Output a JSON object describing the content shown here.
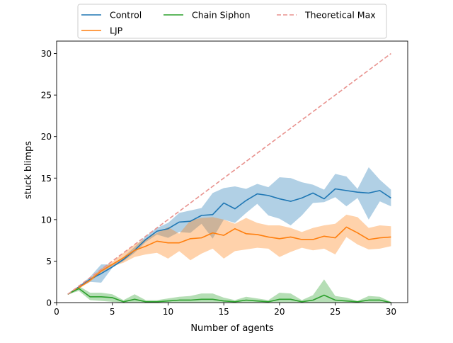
{
  "chart_data": {
    "type": "line",
    "title": "",
    "xlabel": "Number of agents",
    "ylabel": "stuck blimps",
    "xlim": [
      0,
      31.5
    ],
    "ylim": [
      0,
      31.5
    ],
    "xticks": [
      0,
      5,
      10,
      15,
      20,
      25,
      30
    ],
    "yticks": [
      0,
      5,
      10,
      15,
      20,
      25,
      30
    ],
    "grid": false,
    "legend_position": "top-center, outside plot, 3 columns",
    "x": [
      1,
      2,
      3,
      4,
      5,
      6,
      7,
      8,
      9,
      10,
      11,
      12,
      13,
      14,
      15,
      16,
      17,
      18,
      19,
      20,
      21,
      22,
      23,
      24,
      25,
      26,
      27,
      28,
      29,
      30
    ],
    "series": [
      {
        "name": "Control",
        "color": "#1f77b4",
        "style": "solid",
        "values": [
          1.0,
          1.9,
          2.8,
          3.5,
          4.3,
          5.2,
          6.3,
          7.6,
          8.6,
          8.9,
          9.7,
          9.8,
          10.5,
          10.6,
          12.0,
          11.3,
          12.3,
          13.1,
          12.9,
          12.5,
          12.2,
          12.6,
          13.2,
          12.5,
          13.7,
          13.5,
          13.3,
          13.2,
          13.5,
          12.6
        ],
        "band_lower": [
          1.0,
          1.8,
          2.5,
          2.4,
          4.2,
          5.0,
          6.0,
          7.3,
          8.2,
          7.8,
          8.5,
          8.4,
          9.5,
          7.7,
          10.0,
          9.6,
          10.8,
          11.9,
          10.5,
          10.1,
          9.3,
          10.5,
          12.0,
          12.1,
          12.7,
          11.6,
          12.6,
          10.0,
          12.2,
          11.6
        ],
        "band_upper": [
          1.0,
          2.0,
          3.1,
          4.6,
          4.6,
          5.5,
          6.7,
          8.0,
          9.0,
          9.6,
          10.8,
          11.1,
          11.4,
          13.2,
          13.8,
          14.0,
          13.7,
          14.3,
          13.9,
          15.1,
          15.0,
          14.5,
          14.2,
          13.6,
          15.5,
          15.2,
          13.7,
          16.3,
          14.8,
          13.6
        ]
      },
      {
        "name": "LJP",
        "color": "#ff7f0e",
        "style": "solid",
        "values": [
          1.0,
          1.8,
          2.7,
          3.8,
          4.6,
          5.4,
          6.3,
          6.8,
          7.4,
          7.2,
          7.2,
          7.7,
          7.8,
          8.4,
          8.1,
          8.9,
          8.3,
          8.2,
          7.9,
          7.7,
          7.9,
          7.6,
          7.6,
          8.0,
          7.8,
          9.1,
          8.4,
          7.6,
          7.8,
          7.9
        ],
        "band_lower": [
          1.0,
          1.7,
          2.5,
          3.6,
          4.4,
          4.8,
          5.5,
          5.8,
          6.0,
          5.3,
          6.2,
          5.1,
          5.9,
          6.5,
          5.3,
          6.2,
          6.4,
          6.6,
          6.5,
          5.5,
          6.1,
          6.6,
          6.3,
          6.5,
          5.8,
          7.9,
          7.0,
          6.4,
          6.5,
          6.8
        ],
        "band_upper": [
          1.0,
          1.9,
          2.9,
          4.1,
          4.9,
          6.0,
          7.0,
          7.7,
          8.4,
          9.1,
          8.3,
          9.9,
          10.2,
          10.3,
          10.0,
          9.5,
          10.2,
          9.6,
          9.3,
          9.3,
          9.0,
          8.5,
          9.0,
          9.3,
          9.5,
          10.6,
          10.3,
          9.0,
          9.3,
          9.2
        ]
      },
      {
        "name": "Chain Siphon",
        "color": "#2ca02c",
        "style": "solid",
        "values": [
          1.0,
          1.7,
          0.7,
          0.7,
          0.6,
          0.1,
          0.4,
          0.1,
          0.1,
          0.2,
          0.3,
          0.3,
          0.4,
          0.4,
          0.2,
          0.1,
          0.3,
          0.2,
          0.1,
          0.4,
          0.4,
          0.1,
          0.3,
          0.9,
          0.3,
          0.2,
          0.1,
          0.3,
          0.3,
          0.0
        ],
        "band_lower": [
          1.0,
          1.4,
          0.3,
          0.2,
          0.1,
          0.0,
          0.0,
          0.0,
          0.0,
          0.0,
          0.0,
          0.0,
          0.0,
          0.0,
          0.0,
          0.0,
          0.0,
          0.0,
          0.0,
          0.0,
          0.0,
          0.0,
          0.0,
          0.0,
          0.0,
          0.0,
          0.0,
          0.0,
          0.0,
          0.0
        ],
        "band_upper": [
          1.0,
          2.0,
          1.2,
          1.2,
          1.0,
          0.3,
          1.0,
          0.3,
          0.3,
          0.5,
          0.7,
          0.8,
          1.1,
          1.1,
          0.6,
          0.3,
          0.7,
          0.5,
          0.3,
          1.2,
          1.1,
          0.3,
          0.9,
          2.8,
          0.8,
          0.6,
          0.2,
          0.8,
          0.7,
          0.1
        ]
      },
      {
        "name": "Theoretical Max",
        "color": "#e8928e",
        "style": "dashed",
        "values": [
          1,
          2,
          3,
          4,
          5,
          6,
          7,
          8,
          9,
          10,
          11,
          12,
          13,
          14,
          15,
          16,
          17,
          18,
          19,
          20,
          21,
          22,
          23,
          24,
          25,
          26,
          27,
          28,
          29,
          30
        ]
      }
    ]
  }
}
